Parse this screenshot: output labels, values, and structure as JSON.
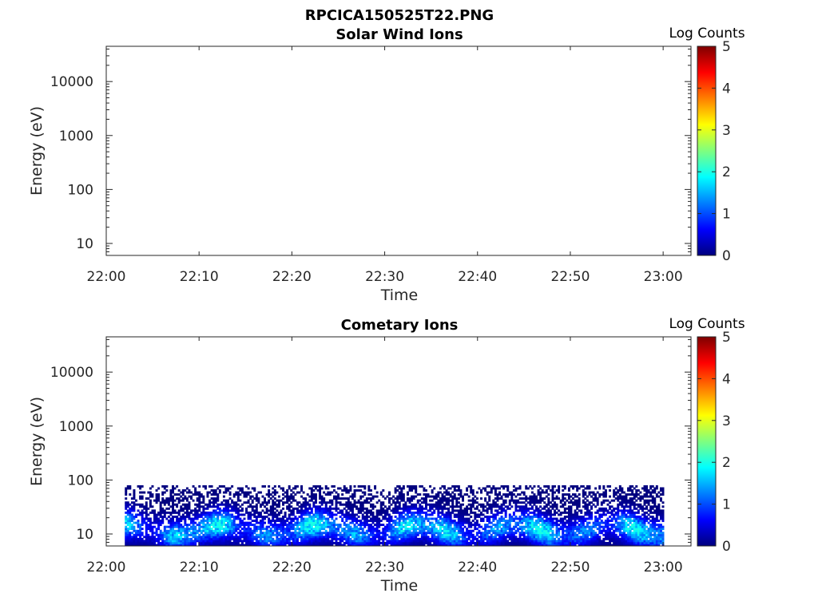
{
  "figure_title": "RPCICA150525T22.PNG",
  "colormap": [
    "#00007f",
    "#0000ff",
    "#007fff",
    "#00ffff",
    "#7fff7f",
    "#ffff00",
    "#ff7f00",
    "#ff0000",
    "#7f0000"
  ],
  "chart_data": [
    {
      "type": "heatmap",
      "title": "Solar Wind Ions",
      "xlabel": "Time",
      "ylabel": "Energy (eV)",
      "x_range": [
        "22:00",
        "23:03"
      ],
      "x_ticks": [
        "22:00",
        "22:10",
        "22:20",
        "22:30",
        "22:40",
        "22:50",
        "23:00"
      ],
      "y_scale": "log",
      "y_range": [
        6,
        45000
      ],
      "y_ticks": [
        10,
        100,
        1000,
        10000
      ],
      "y_tick_labels": [
        "10",
        "100",
        "1000",
        "10000"
      ],
      "colorbar": {
        "label": "Log Counts",
        "range": [
          0,
          5
        ],
        "ticks": [
          "0",
          "1",
          "2",
          "3",
          "4",
          "5"
        ]
      },
      "data": []
    },
    {
      "type": "heatmap",
      "title": "Cometary Ions",
      "xlabel": "Time",
      "ylabel": "Energy (eV)",
      "x_range": [
        "22:00",
        "23:03"
      ],
      "x_ticks": [
        "22:00",
        "22:10",
        "22:20",
        "22:30",
        "22:40",
        "22:50",
        "23:00"
      ],
      "y_scale": "log",
      "y_range": [
        6,
        45000
      ],
      "y_ticks": [
        10,
        100,
        1000,
        10000
      ],
      "y_tick_labels": [
        "10",
        "100",
        "1000",
        "10000"
      ],
      "colorbar": {
        "label": "Log Counts",
        "range": [
          0,
          5
        ],
        "ticks": [
          "0",
          "1",
          "2",
          "3",
          "4",
          "5"
        ]
      },
      "data_time_range": [
        "22:02",
        "23:00"
      ],
      "data_energy_range": [
        6,
        80
      ],
      "data_log_counts_range": [
        0,
        2
      ]
    }
  ]
}
